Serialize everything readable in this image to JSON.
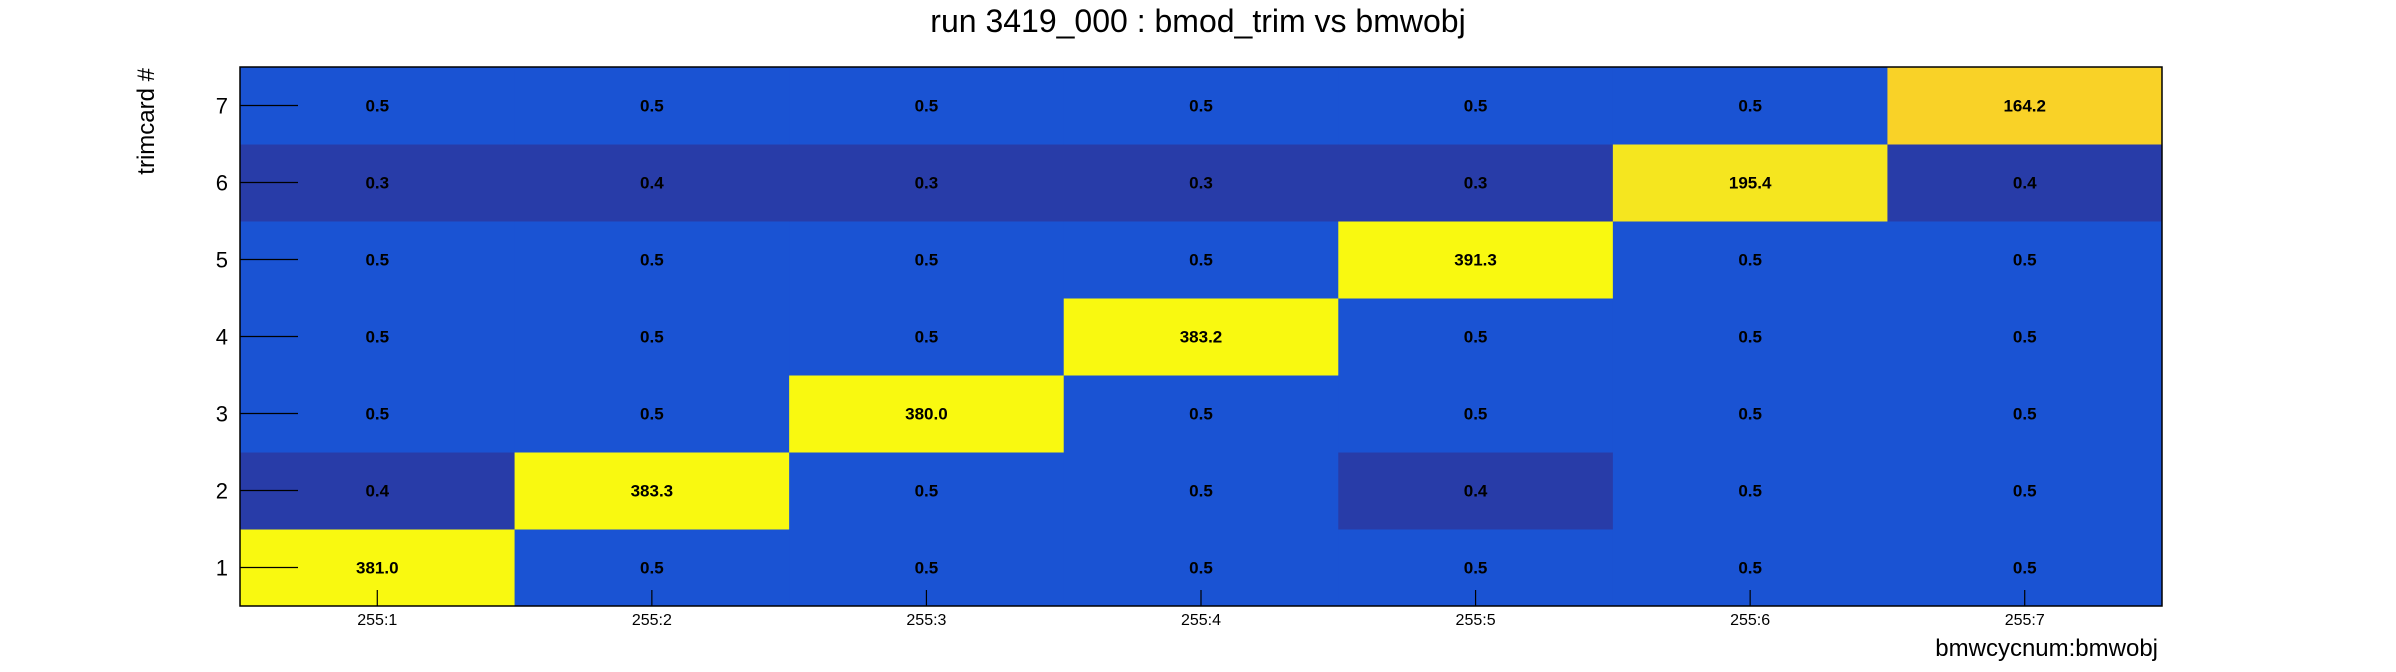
{
  "chart_data": {
    "type": "heatmap",
    "title": "run 3419_000 : bmod_trim vs bmwobj",
    "xlabel": "bmwcycnum:bmwobj",
    "ylabel": "trimcard #",
    "x_categories": [
      "255:1",
      "255:2",
      "255:3",
      "255:4",
      "255:5",
      "255:6",
      "255:7"
    ],
    "y_categories": [
      "1",
      "2",
      "3",
      "4",
      "5",
      "6",
      "7"
    ],
    "values": [
      [
        381.0,
        0.5,
        0.5,
        0.5,
        0.5,
        0.5,
        0.5
      ],
      [
        0.4,
        383.3,
        0.5,
        0.5,
        0.4,
        0.5,
        0.5
      ],
      [
        0.5,
        0.5,
        380.0,
        0.5,
        0.5,
        0.5,
        0.5
      ],
      [
        0.5,
        0.5,
        0.5,
        383.2,
        0.5,
        0.5,
        0.5
      ],
      [
        0.5,
        0.5,
        0.5,
        0.5,
        391.3,
        0.5,
        0.5
      ],
      [
        0.3,
        0.4,
        0.3,
        0.3,
        0.3,
        195.4,
        0.4
      ],
      [
        0.5,
        0.5,
        0.5,
        0.5,
        0.5,
        0.5,
        164.2
      ]
    ],
    "labels": [
      [
        "381.0",
        "0.5",
        "0.5",
        "0.5",
        "0.5",
        "0.5",
        "0.5"
      ],
      [
        "0.4",
        "383.3",
        "0.5",
        "0.5",
        "0.4",
        "0.5",
        "0.5"
      ],
      [
        "0.5",
        "0.5",
        "380.0",
        "0.5",
        "0.5",
        "0.5",
        "0.5"
      ],
      [
        "0.5",
        "0.5",
        "0.5",
        "383.2",
        "0.5",
        "0.5",
        "0.5"
      ],
      [
        "0.5",
        "0.5",
        "0.5",
        "0.5",
        "391.3",
        "0.5",
        "0.5"
      ],
      [
        "0.3",
        "0.4",
        "0.3",
        "0.3",
        "0.3",
        "195.4",
        "0.4"
      ],
      [
        "0.5",
        "0.5",
        "0.5",
        "0.5",
        "0.5",
        "0.5",
        "164.2"
      ]
    ],
    "colors": {
      "low": "#283ca8",
      "mid": "#1a53d3",
      "high_warm": "#f9d227",
      "high_mid": "#f5e61f",
      "high": "#f9f910",
      "axis": "#000000"
    },
    "grid": false,
    "legend": "none"
  }
}
